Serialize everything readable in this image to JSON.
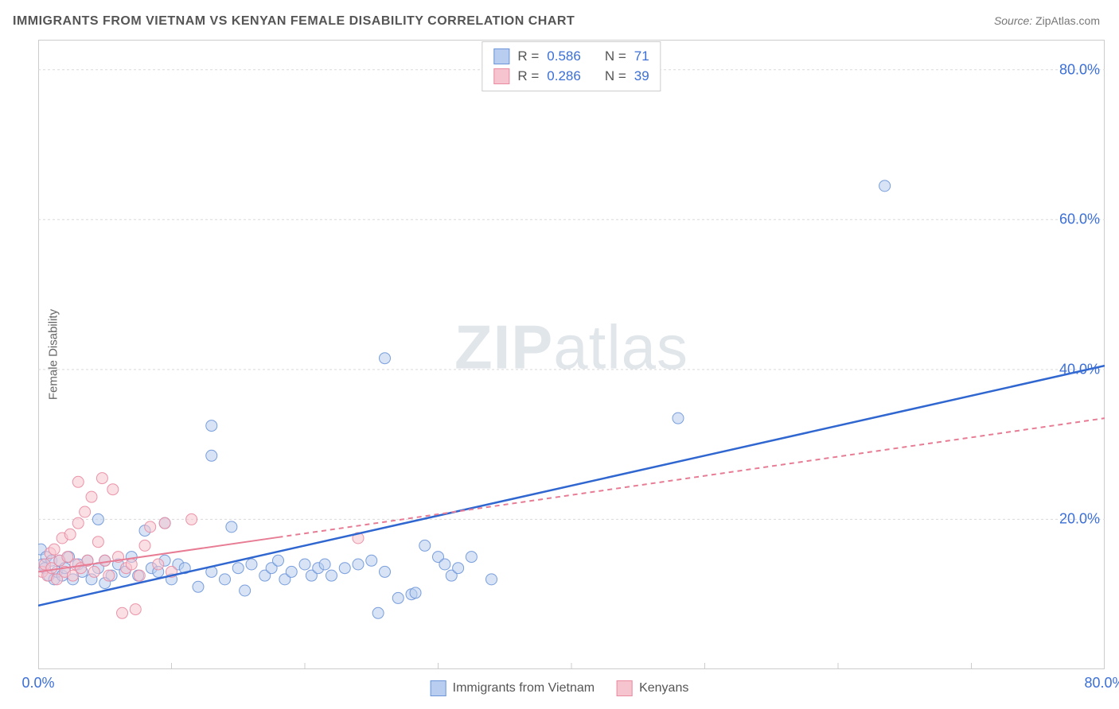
{
  "title": "IMMIGRANTS FROM VIETNAM VS KENYAN FEMALE DISABILITY CORRELATION CHART",
  "source_label": "Source: ",
  "source_name": "ZipAtlas.com",
  "ylabel": "Female Disability",
  "watermark_a": "ZIP",
  "watermark_b": "atlas",
  "chart": {
    "type": "scatter",
    "xlim": [
      0,
      80
    ],
    "ylim": [
      0,
      84
    ],
    "yticks": [
      20,
      40,
      60,
      80
    ],
    "ytick_labels": [
      "20.0%",
      "40.0%",
      "60.0%",
      "80.0%"
    ],
    "xmin_label": "0.0%",
    "xmax_label": "80.0%",
    "grid_color": "#d9d9d9",
    "axis_color": "#cccccc",
    "marker_radius": 7,
    "marker_opacity": 0.55,
    "marker_stroke_opacity": 0.9,
    "title_color": "#555555",
    "tick_color": "#3b6fd6",
    "series": [
      {
        "key": "vietnam",
        "label": "Immigrants from Vietnam",
        "color_fill": "#b8cdef",
        "color_stroke": "#6b95d8",
        "trend_color": "#2f66d0",
        "trend_width": 2.5,
        "trend_dash": "",
        "trend": {
          "x1": 0,
          "y1": 8.5,
          "x2": 80,
          "y2": 40.5
        },
        "R": "0.586",
        "N": "71",
        "points": [
          [
            63.5,
            64.5
          ],
          [
            48.0,
            33.5
          ],
          [
            26.0,
            41.5
          ],
          [
            13.0,
            32.5
          ],
          [
            13.0,
            28.5
          ],
          [
            0.2,
            16.0
          ],
          [
            0.3,
            14.0
          ],
          [
            0.5,
            13.5
          ],
          [
            0.6,
            15.0
          ],
          [
            0.8,
            12.5
          ],
          [
            1.0,
            14.5
          ],
          [
            1.2,
            12.0
          ],
          [
            1.4,
            13.0
          ],
          [
            1.6,
            14.5
          ],
          [
            1.8,
            12.5
          ],
          [
            2.0,
            13.5
          ],
          [
            2.3,
            15.0
          ],
          [
            2.6,
            12.0
          ],
          [
            3.0,
            14.0
          ],
          [
            3.3,
            13.0
          ],
          [
            3.7,
            14.5
          ],
          [
            4.0,
            12.0
          ],
          [
            4.5,
            13.5
          ],
          [
            5.0,
            14.5
          ],
          [
            5.5,
            12.5
          ],
          [
            6.0,
            14.0
          ],
          [
            6.5,
            13.0
          ],
          [
            7.0,
            15.0
          ],
          [
            7.5,
            12.5
          ],
          [
            8.0,
            18.5
          ],
          [
            8.5,
            13.5
          ],
          [
            9.0,
            13.0
          ],
          [
            9.5,
            14.5
          ],
          [
            10.0,
            12.0
          ],
          [
            10.5,
            14.0
          ],
          [
            11.0,
            13.5
          ],
          [
            12.0,
            11.0
          ],
          [
            13.0,
            13.0
          ],
          [
            14.0,
            12.0
          ],
          [
            15.0,
            13.5
          ],
          [
            15.5,
            10.5
          ],
          [
            16.0,
            14.0
          ],
          [
            17.0,
            12.5
          ],
          [
            17.5,
            13.5
          ],
          [
            18.0,
            14.5
          ],
          [
            18.5,
            12.0
          ],
          [
            19.0,
            13.0
          ],
          [
            20.0,
            14.0
          ],
          [
            20.5,
            12.5
          ],
          [
            21.0,
            13.5
          ],
          [
            21.5,
            14.0
          ],
          [
            22.0,
            12.5
          ],
          [
            23.0,
            13.5
          ],
          [
            24.0,
            14.0
          ],
          [
            25.0,
            14.5
          ],
          [
            25.5,
            7.5
          ],
          [
            26.0,
            13.0
          ],
          [
            27.0,
            9.5
          ],
          [
            28.0,
            10.0
          ],
          [
            28.3,
            10.2
          ],
          [
            29.0,
            16.5
          ],
          [
            30.0,
            15.0
          ],
          [
            30.5,
            14.0
          ],
          [
            31.0,
            12.5
          ],
          [
            31.5,
            13.5
          ],
          [
            32.5,
            15.0
          ],
          [
            34.0,
            12.0
          ],
          [
            4.5,
            20.0
          ],
          [
            9.5,
            19.5
          ],
          [
            14.5,
            19.0
          ],
          [
            5.0,
            11.5
          ]
        ]
      },
      {
        "key": "kenyan",
        "label": "Kenyans",
        "color_fill": "#f6c4cf",
        "color_stroke": "#e98aa0",
        "trend_color": "#e77c94",
        "trend_width": 2,
        "trend_dash": "6 5",
        "trend_solid_until_x": 18,
        "trend": {
          "x1": 0,
          "y1": 13.0,
          "x2": 80,
          "y2": 33.5
        },
        "R": "0.286",
        "N": "39",
        "points": [
          [
            0.3,
            13.0
          ],
          [
            0.5,
            14.0
          ],
          [
            0.7,
            12.5
          ],
          [
            0.9,
            15.5
          ],
          [
            1.0,
            13.5
          ],
          [
            1.2,
            16.0
          ],
          [
            1.4,
            12.0
          ],
          [
            1.6,
            14.5
          ],
          [
            1.8,
            17.5
          ],
          [
            2.0,
            13.0
          ],
          [
            2.2,
            15.0
          ],
          [
            2.4,
            18.0
          ],
          [
            2.6,
            12.5
          ],
          [
            2.8,
            14.0
          ],
          [
            3.0,
            19.5
          ],
          [
            3.2,
            13.5
          ],
          [
            3.5,
            21.0
          ],
          [
            3.7,
            14.5
          ],
          [
            4.0,
            23.0
          ],
          [
            4.2,
            13.0
          ],
          [
            4.5,
            17.0
          ],
          [
            4.8,
            25.5
          ],
          [
            5.0,
            14.5
          ],
          [
            5.3,
            12.5
          ],
          [
            5.6,
            24.0
          ],
          [
            6.0,
            15.0
          ],
          [
            6.3,
            7.5
          ],
          [
            6.6,
            13.5
          ],
          [
            7.0,
            14.0
          ],
          [
            7.3,
            8.0
          ],
          [
            7.6,
            12.5
          ],
          [
            8.0,
            16.5
          ],
          [
            8.4,
            19.0
          ],
          [
            9.0,
            14.0
          ],
          [
            9.5,
            19.5
          ],
          [
            10.0,
            13.0
          ],
          [
            11.5,
            20.0
          ],
          [
            24.0,
            17.5
          ],
          [
            3.0,
            25.0
          ]
        ]
      }
    ]
  },
  "top_legend": {
    "R_label": "R =",
    "N_label": "N ="
  }
}
